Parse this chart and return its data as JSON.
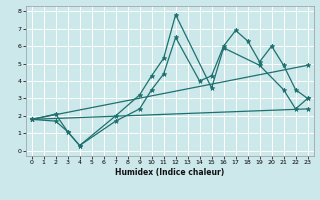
{
  "xlabel": "Humidex (Indice chaleur)",
  "bg_color": "#cce8ea",
  "grid_color": "#ffffff",
  "line_color": "#1e7070",
  "xlim": [
    -0.5,
    23.5
  ],
  "ylim": [
    -0.3,
    8.3
  ],
  "xticks": [
    0,
    1,
    2,
    3,
    4,
    5,
    6,
    7,
    8,
    9,
    10,
    11,
    12,
    13,
    14,
    15,
    16,
    17,
    18,
    19,
    20,
    21,
    22,
    23
  ],
  "yticks": [
    0,
    1,
    2,
    3,
    4,
    5,
    6,
    7,
    8
  ],
  "series": [
    {
      "x": [
        0,
        2,
        3,
        4,
        7,
        9,
        10,
        11,
        12,
        15,
        16,
        19,
        21,
        22,
        23
      ],
      "y": [
        1.8,
        2.1,
        1.1,
        0.3,
        2.0,
        3.2,
        4.3,
        5.3,
        7.8,
        3.6,
        5.9,
        4.9,
        3.5,
        2.4,
        3.0
      ]
    },
    {
      "x": [
        0,
        2,
        3,
        4,
        7,
        9,
        10,
        11,
        12,
        14,
        15,
        16,
        17,
        18,
        19,
        20,
        21,
        22,
        23
      ],
      "y": [
        1.8,
        1.7,
        1.1,
        0.3,
        1.7,
        2.4,
        3.5,
        4.4,
        6.5,
        4.0,
        4.3,
        6.0,
        6.9,
        6.3,
        5.1,
        6.0,
        4.9,
        3.5,
        3.0
      ]
    },
    {
      "x": [
        0,
        23
      ],
      "y": [
        1.8,
        2.4
      ]
    },
    {
      "x": [
        0,
        23
      ],
      "y": [
        1.8,
        4.9
      ]
    }
  ]
}
